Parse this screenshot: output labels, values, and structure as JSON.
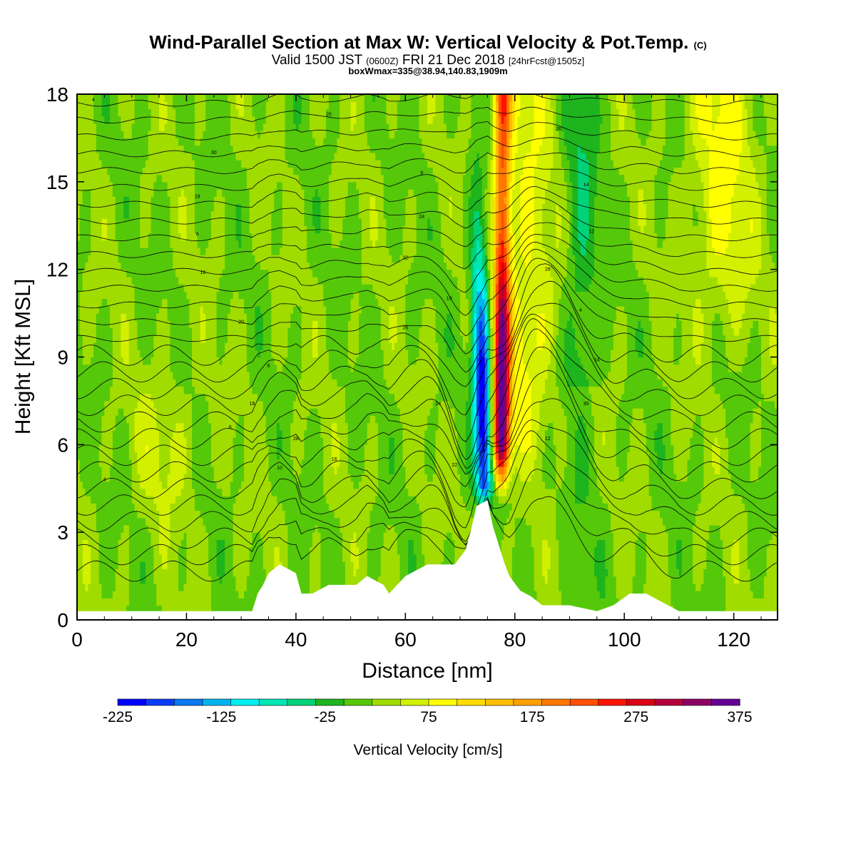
{
  "header": {
    "title_main": "Wind-Parallel Section at Max W: Vertical Velocity & Pot.Temp.",
    "title_copyright": "(C)",
    "subtitle_valid": "Valid 1500 JST",
    "subtitle_utc": "(0600Z)",
    "subtitle_date": "FRI 21 Dec 2018",
    "subtitle_fcst": "[24hrFcst@1505z]",
    "boxinfo": "boxWmax=335@38.94,140.83,1909m"
  },
  "chart_data": {
    "type": "heatmap",
    "description_kind": "vertical cross-section of vertical velocity (color fill) with potential temperature contours",
    "xlabel": "Distance [nm]",
    "ylabel": "Height [Kft MSL]",
    "xlim": [
      0,
      128
    ],
    "ylim": [
      0,
      18
    ],
    "xticks": [
      "0",
      "20",
      "40",
      "60",
      "80",
      "100",
      "120"
    ],
    "yticks": [
      "0",
      "3",
      "6",
      "9",
      "12",
      "15",
      "18"
    ],
    "colorbar": {
      "label": "Vertical Velocity [cm/s]",
      "min": -225,
      "max": 375,
      "step": 25,
      "tick_labels": [
        "-225",
        "-125",
        "-25",
        "75",
        "175",
        "275",
        "375"
      ],
      "colors": [
        "#0000ff",
        "#0a3cf8",
        "#0a78f0",
        "#00b4f0",
        "#00f0f0",
        "#00e6b4",
        "#00d278",
        "#1eb41e",
        "#55c80a",
        "#a0dc00",
        "#d2f000",
        "#ffff00",
        "#ffdc00",
        "#ffbe00",
        "#ffa000",
        "#ff7800",
        "#ff5000",
        "#ff1400",
        "#dc0014",
        "#b4003c",
        "#8c0064",
        "#640096"
      ]
    },
    "wave": {
      "updraft_center_nm": 77.5,
      "downdraft_center_nm": 74.5,
      "wmax_cm_s": 335
    },
    "terrain_kft": {
      "x": [
        0,
        32,
        33,
        34,
        35,
        37,
        40,
        41,
        43,
        46,
        51,
        53,
        56,
        57,
        60,
        64,
        69,
        71,
        72,
        73,
        75,
        76,
        78,
        79,
        81,
        83,
        85,
        90,
        95,
        98,
        101,
        104,
        110,
        128
      ],
      "y": [
        0.3,
        0.3,
        0.9,
        1.2,
        1.6,
        1.9,
        1.6,
        0.9,
        0.9,
        1.2,
        1.2,
        1.5,
        1.2,
        0.9,
        1.5,
        1.9,
        1.9,
        2.4,
        3.1,
        3.9,
        4.1,
        3.2,
        2.0,
        1.5,
        1.0,
        0.8,
        0.5,
        0.5,
        0.3,
        0.5,
        0.9,
        0.9,
        0.3,
        0.3
      ]
    },
    "theta_contour_labels": [
      "4",
      "6",
      "8",
      "10",
      "12",
      "14",
      "16",
      "18",
      "20",
      "22",
      "24",
      "26",
      "28",
      "30"
    ]
  }
}
